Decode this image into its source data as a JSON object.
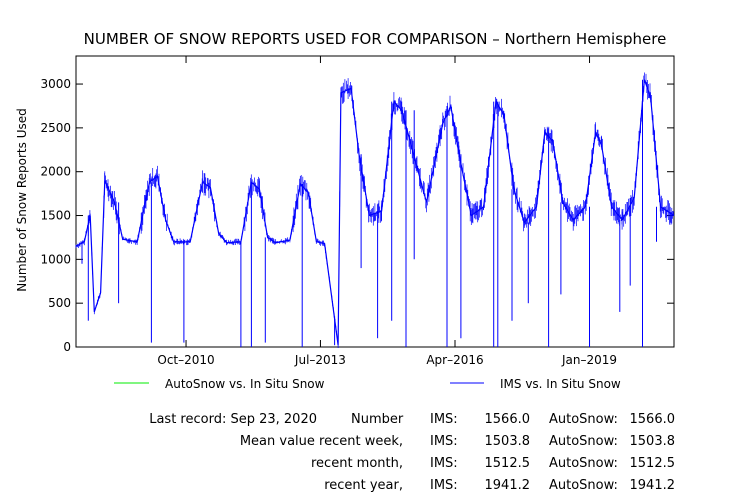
{
  "chart_data": {
    "type": "line",
    "title": "NUMBER OF SNOW REPORTS USED FOR COMPARISON – Northern Hemisphere",
    "ylabel": "Number of Snow Reports Used",
    "xlabel": "",
    "ylim": [
      0,
      3320
    ],
    "xlim": [
      "2008-07-01",
      "2020-09-23"
    ],
    "y_ticks": [
      0,
      500,
      1000,
      1500,
      2000,
      2500,
      3000
    ],
    "x_ticks": [
      {
        "date": "2010-10-01",
        "label": "Oct–2010"
      },
      {
        "date": "2013-07-01",
        "label": "Jul–2013"
      },
      {
        "date": "2016-04-01",
        "label": "Apr–2016"
      },
      {
        "date": "2019-01-01",
        "label": "Jan–2019"
      }
    ],
    "grid": false,
    "legend_position": "bottom",
    "series": [
      {
        "name": "AutoSnow vs. In Situ Snow",
        "color": "#00ee00",
        "points": []
      },
      {
        "name": "IMS vs. In Situ Snow",
        "color": "#0000ff",
        "points": [
          {
            "x": "2008-07-01",
            "y": 1150
          },
          {
            "x": "2008-09-01",
            "y": 1200
          },
          {
            "x": "2008-10-15",
            "y": 1500
          },
          {
            "x": "2008-11-15",
            "y": 400
          },
          {
            "x": "2009-01-01",
            "y": 620
          },
          {
            "x": "2009-02-01",
            "y": 1900
          },
          {
            "x": "2009-04-15",
            "y": 1650
          },
          {
            "x": "2009-06-15",
            "y": 1230
          },
          {
            "x": "2009-10-01",
            "y": 1200
          },
          {
            "x": "2010-01-01",
            "y": 1880
          },
          {
            "x": "2010-03-01",
            "y": 1950
          },
          {
            "x": "2010-05-01",
            "y": 1450
          },
          {
            "x": "2010-07-01",
            "y": 1200
          },
          {
            "x": "2010-11-01",
            "y": 1200
          },
          {
            "x": "2011-02-01",
            "y": 1880
          },
          {
            "x": "2011-04-01",
            "y": 1820
          },
          {
            "x": "2011-06-01",
            "y": 1300
          },
          {
            "x": "2011-08-01",
            "y": 1190
          },
          {
            "x": "2011-11-15",
            "y": 1200
          },
          {
            "x": "2012-02-01",
            "y": 1880
          },
          {
            "x": "2012-04-01",
            "y": 1800
          },
          {
            "x": "2012-06-01",
            "y": 1250
          },
          {
            "x": "2012-08-01",
            "y": 1190
          },
          {
            "x": "2012-11-15",
            "y": 1220
          },
          {
            "x": "2013-02-01",
            "y": 1860
          },
          {
            "x": "2013-04-01",
            "y": 1760
          },
          {
            "x": "2013-06-01",
            "y": 1200
          },
          {
            "x": "2013-08-01",
            "y": 1180
          },
          {
            "x": "2013-11-10",
            "y": 20
          },
          {
            "x": "2013-12-01",
            "y": 2900
          },
          {
            "x": "2014-02-15",
            "y": 2950
          },
          {
            "x": "2014-04-15",
            "y": 2200
          },
          {
            "x": "2014-07-01",
            "y": 1500
          },
          {
            "x": "2014-10-01",
            "y": 1550
          },
          {
            "x": "2015-01-01",
            "y": 2800
          },
          {
            "x": "2015-03-01",
            "y": 2700
          },
          {
            "x": "2015-09-01",
            "y": 1650
          },
          {
            "x": "2016-01-01",
            "y": 2550
          },
          {
            "x": "2016-03-01",
            "y": 2750
          },
          {
            "x": "2016-05-01",
            "y": 2200
          },
          {
            "x": "2016-08-01",
            "y": 1500
          },
          {
            "x": "2016-11-01",
            "y": 1600
          },
          {
            "x": "2017-02-01",
            "y": 2800
          },
          {
            "x": "2017-04-01",
            "y": 2650
          },
          {
            "x": "2017-06-15",
            "y": 1800
          },
          {
            "x": "2017-09-01",
            "y": 1420
          },
          {
            "x": "2017-12-01",
            "y": 1600
          },
          {
            "x": "2018-02-01",
            "y": 2450
          },
          {
            "x": "2018-04-01",
            "y": 2350
          },
          {
            "x": "2018-06-15",
            "y": 1650
          },
          {
            "x": "2018-09-01",
            "y": 1450
          },
          {
            "x": "2018-12-01",
            "y": 1600
          },
          {
            "x": "2019-02-15",
            "y": 2450
          },
          {
            "x": "2019-04-01",
            "y": 2300
          },
          {
            "x": "2019-06-15",
            "y": 1600
          },
          {
            "x": "2019-09-01",
            "y": 1450
          },
          {
            "x": "2019-12-01",
            "y": 1700
          },
          {
            "x": "2020-02-15",
            "y": 3050
          },
          {
            "x": "2020-04-01",
            "y": 2850
          },
          {
            "x": "2020-06-15",
            "y": 1600
          },
          {
            "x": "2020-09-23",
            "y": 1500
          }
        ],
        "drops": [
          {
            "x": "2008-08-15",
            "y": 950
          },
          {
            "x": "2008-10-01",
            "y": 300
          },
          {
            "x": "2009-05-15",
            "y": 500
          },
          {
            "x": "2010-01-15",
            "y": 50
          },
          {
            "x": "2010-09-15",
            "y": 50
          },
          {
            "x": "2011-11-15",
            "y": 0
          },
          {
            "x": "2012-02-01",
            "y": 0
          },
          {
            "x": "2012-05-15",
            "y": 50
          },
          {
            "x": "2013-02-15",
            "y": 0
          },
          {
            "x": "2013-10-15",
            "y": 350
          },
          {
            "x": "2014-05-01",
            "y": 900
          },
          {
            "x": "2014-09-01",
            "y": 100
          },
          {
            "x": "2014-12-15",
            "y": 300
          },
          {
            "x": "2015-04-01",
            "y": 0
          },
          {
            "x": "2015-06-01",
            "y": 1000
          },
          {
            "x": "2016-02-01",
            "y": 0
          },
          {
            "x": "2016-05-15",
            "y": 100
          },
          {
            "x": "2017-01-15",
            "y": 0
          },
          {
            "x": "2017-02-15",
            "y": 0
          },
          {
            "x": "2017-06-01",
            "y": 300
          },
          {
            "x": "2017-10-01",
            "y": 500
          },
          {
            "x": "2018-03-01",
            "y": 0
          },
          {
            "x": "2018-06-01",
            "y": 600
          },
          {
            "x": "2019-01-01",
            "y": 0
          },
          {
            "x": "2019-08-15",
            "y": 400
          },
          {
            "x": "2019-11-01",
            "y": 700
          },
          {
            "x": "2020-02-01",
            "y": 0
          },
          {
            "x": "2020-05-15",
            "y": 1200
          }
        ]
      }
    ]
  },
  "stats": {
    "last_record_label": "Last record: Sep 23, 2020",
    "number_label": "Number",
    "rows": [
      {
        "label": "",
        "ims_label": "IMS:",
        "ims_value": "1566.0",
        "auto_label": "AutoSnow:",
        "auto_value": "1566.0"
      },
      {
        "label": "Mean value recent week,",
        "ims_label": "IMS:",
        "ims_value": "1503.8",
        "auto_label": "AutoSnow:",
        "auto_value": "1503.8"
      },
      {
        "label": "recent month,",
        "ims_label": "IMS:",
        "ims_value": "1512.5",
        "auto_label": "AutoSnow:",
        "auto_value": "1512.5"
      },
      {
        "label": "recent year,",
        "ims_label": "IMS:",
        "ims_value": "1941.2",
        "auto_label": "AutoSnow:",
        "auto_value": "1941.2"
      }
    ]
  }
}
